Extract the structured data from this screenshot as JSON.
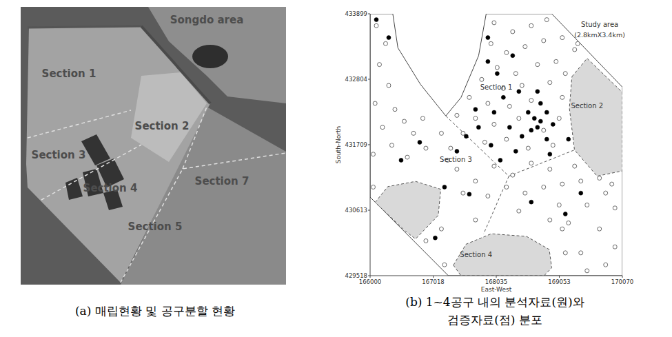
{
  "photo": {
    "labels": [
      "Songdo area",
      "Section 1",
      "Section 2",
      "Section 3",
      "Section 4",
      "Section 7",
      "Section 5"
    ]
  },
  "captions": {
    "a": "(a) 매립현황 및 공구분할 현황",
    "b": [
      "(b) 1~4공구 내의 분석자료(원)와",
      "검증자료(점) 분포"
    ]
  },
  "chart_data": {
    "type": "scatter",
    "xlabel": "East-West",
    "ylabel": "South-North",
    "annotations": [
      "Study area",
      "(2.8kmX3.4km)",
      "Section 1",
      "Section 2",
      "Section 3",
      "Section 4"
    ],
    "xlim": [
      166000,
      170070
    ],
    "ylim": [
      429518,
      433899
    ],
    "xticks": [
      166000,
      167018,
      168035,
      169053,
      170070
    ],
    "yticks": [
      429518,
      430613,
      431709,
      432804,
      433899
    ],
    "grid": false,
    "series": [
      {
        "marker": "open-circle",
        "color": "#5a5a5a",
        "x": [
          166100,
          166250,
          166150,
          166300,
          166080,
          166400,
          166200,
          166550,
          166700,
          166350,
          166050,
          166900,
          166600,
          167250,
          167300,
          167150,
          166850,
          168000,
          168300,
          168600,
          168850,
          167950,
          168200,
          168500,
          168800,
          169100,
          169300,
          168050,
          168350,
          168700,
          169000,
          167800,
          168150,
          168450,
          168900,
          167600,
          167900,
          168250,
          168600,
          169100,
          167700,
          168000,
          168400,
          168800,
          169050,
          167500,
          167850,
          168200,
          168550,
          168950,
          167400,
          169300,
          169700,
          169900,
          169400,
          169800,
          169950,
          169500,
          169200,
          169700,
          169950,
          169400,
          169800,
          169500,
          167400,
          167700,
          168000,
          168300,
          168600,
          168900,
          167500,
          167900,
          168200,
          168500,
          168800,
          169100,
          169050,
          169100,
          169150,
          166900,
          167200,
          167150,
          166050,
          169150,
          169350,
          168400,
          167700,
          168900
        ],
        "values": [
          433700,
          433400,
          433050,
          432700,
          432400,
          432300,
          432000,
          432100,
          431900,
          431700,
          431550,
          431650,
          431500,
          431450,
          431650,
          431900,
          432150,
          433750,
          433600,
          433700,
          433800,
          433400,
          433250,
          433350,
          433450,
          433500,
          433300,
          433000,
          432900,
          433050,
          433100,
          432800,
          432650,
          432700,
          432750,
          432500,
          432400,
          432350,
          432450,
          432500,
          432150,
          432050,
          432150,
          431950,
          432150,
          431900,
          431750,
          431800,
          431650,
          431700,
          432200,
          431350,
          431150,
          431050,
          431100,
          430900,
          430650,
          430700,
          430400,
          430300,
          430000,
          429900,
          429700,
          429600,
          431300,
          431100,
          431350,
          431200,
          431400,
          431300,
          430900,
          430850,
          431000,
          430900,
          431000,
          431050,
          430700,
          430300,
          429900,
          430100,
          429700,
          430300,
          431000,
          432900,
          433400,
          430600,
          430450,
          430450
        ]
      },
      {
        "marker": "filled-circle",
        "color": "#000000",
        "x": [
          166100,
          166300,
          167900,
          168300,
          168050,
          168400,
          168150,
          168700,
          168550,
          168650,
          168750,
          168850,
          168700,
          168950,
          168600,
          167700,
          167750,
          167550,
          168250,
          167950,
          168350,
          168100,
          167400,
          167200,
          166800,
          166500,
          167050,
          167600,
          168600,
          168900,
          169400,
          169200,
          168000,
          168450,
          167900,
          168750,
          168850,
          169150
        ],
        "values": [
          433800,
          433500,
          433500,
          433200,
          432900,
          432600,
          432500,
          432600,
          432250,
          432150,
          432100,
          432250,
          432000,
          432050,
          431950,
          432300,
          432000,
          431850,
          432000,
          431700,
          431600,
          431450,
          431600,
          431000,
          431750,
          431450,
          430150,
          430880,
          430750,
          431550,
          430900,
          431800,
          432250,
          431850,
          433100,
          432400,
          431800,
          430550
        ]
      }
    ]
  }
}
